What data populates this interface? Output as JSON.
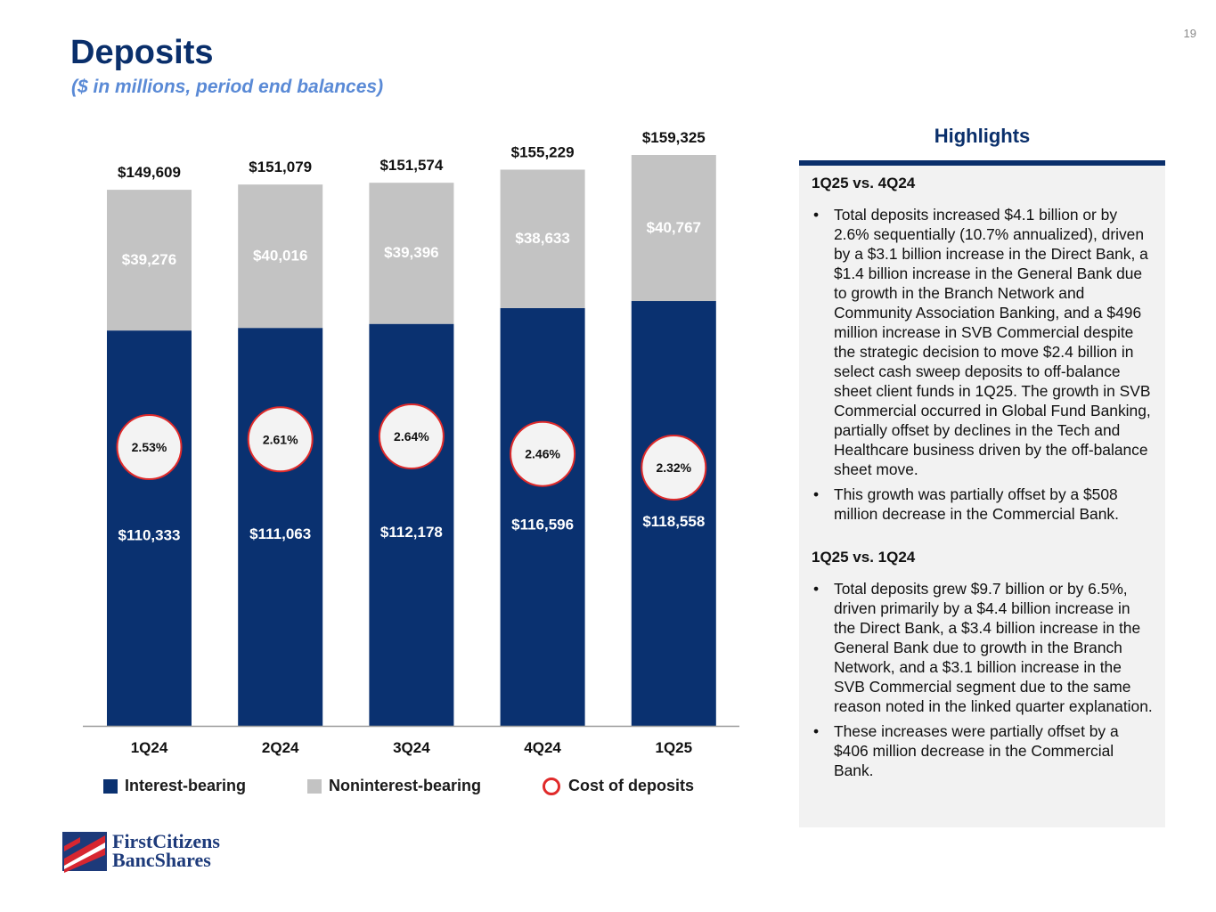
{
  "page_number": "19",
  "header": {
    "title": "Deposits",
    "subtitle": "($ in millions, period end balances)"
  },
  "colors": {
    "interest_bearing": "#0a3170",
    "noninterest_bearing": "#c3c3c3",
    "cost_ring": "#e02a2a",
    "title": "#0a2f6b",
    "subtitle": "#5a8ad6"
  },
  "chart_data": {
    "type": "bar",
    "stacked": true,
    "categories": [
      "1Q24",
      "2Q24",
      "3Q24",
      "4Q24",
      "1Q25"
    ],
    "series": [
      {
        "name": "Interest-bearing",
        "values": [
          110333,
          111063,
          112178,
          116596,
          118558
        ],
        "labels": [
          "$110,333",
          "$111,063",
          "$112,178",
          "$116,596",
          "$118,558"
        ]
      },
      {
        "name": "Noninterest-bearing",
        "values": [
          39276,
          40016,
          39396,
          38633,
          40767
        ],
        "labels": [
          "$39,276",
          "$40,016",
          "$39,396",
          "$38,633",
          "$40,767"
        ]
      }
    ],
    "totals": [
      149609,
      151079,
      151574,
      155229,
      159325
    ],
    "total_labels": [
      "$149,609",
      "$151,079",
      "$151,574",
      "$155,229",
      "$159,325"
    ],
    "cost_of_deposits": {
      "name": "Cost of deposits",
      "values": [
        2.53,
        2.61,
        2.64,
        2.46,
        2.32
      ],
      "labels": [
        "2.53%",
        "2.61%",
        "2.64%",
        "2.46%",
        "2.32%"
      ]
    },
    "ylim": [
      0,
      159325
    ],
    "grid": false,
    "legend": "bottom"
  },
  "legend": {
    "interest": "Interest-bearing",
    "noninterest": "Noninterest-bearing",
    "cost": "Cost of deposits"
  },
  "highlights": {
    "title": "Highlights",
    "sections": [
      {
        "heading": "1Q25 vs. 4Q24",
        "bullets": [
          "Total deposits increased $4.1 billion or by 2.6% sequentially (10.7% annualized), driven by a $3.1 billion increase in the Direct Bank, a $1.4 billion increase in the General Bank due to growth in the Branch Network and Community Association Banking, and a $496 million increase in SVB Commercial despite the strategic decision to move $2.4 billion in select cash sweep deposits to off-balance sheet client funds in 1Q25. The growth in SVB Commercial occurred in Global Fund Banking, partially offset by declines in the Tech and Healthcare business driven by the off-balance sheet move.",
          "This growth was partially offset by a $508 million decrease in the Commercial Bank."
        ]
      },
      {
        "heading": "1Q25 vs. 1Q24",
        "bullets": [
          "Total deposits grew $9.7 billion or by 6.5%, driven primarily by a $4.4 billion increase in the Direct Bank, a $3.4 billion increase in the General Bank due to growth in the Branch Network, and a $3.1 billion increase in the SVB Commercial segment due to the same reason noted in the linked quarter explanation.",
          "These increases were partially offset by a $406 million decrease in the Commercial Bank."
        ]
      }
    ]
  },
  "logo": {
    "line1": "FirstCitizens",
    "line2": "BancShares"
  }
}
